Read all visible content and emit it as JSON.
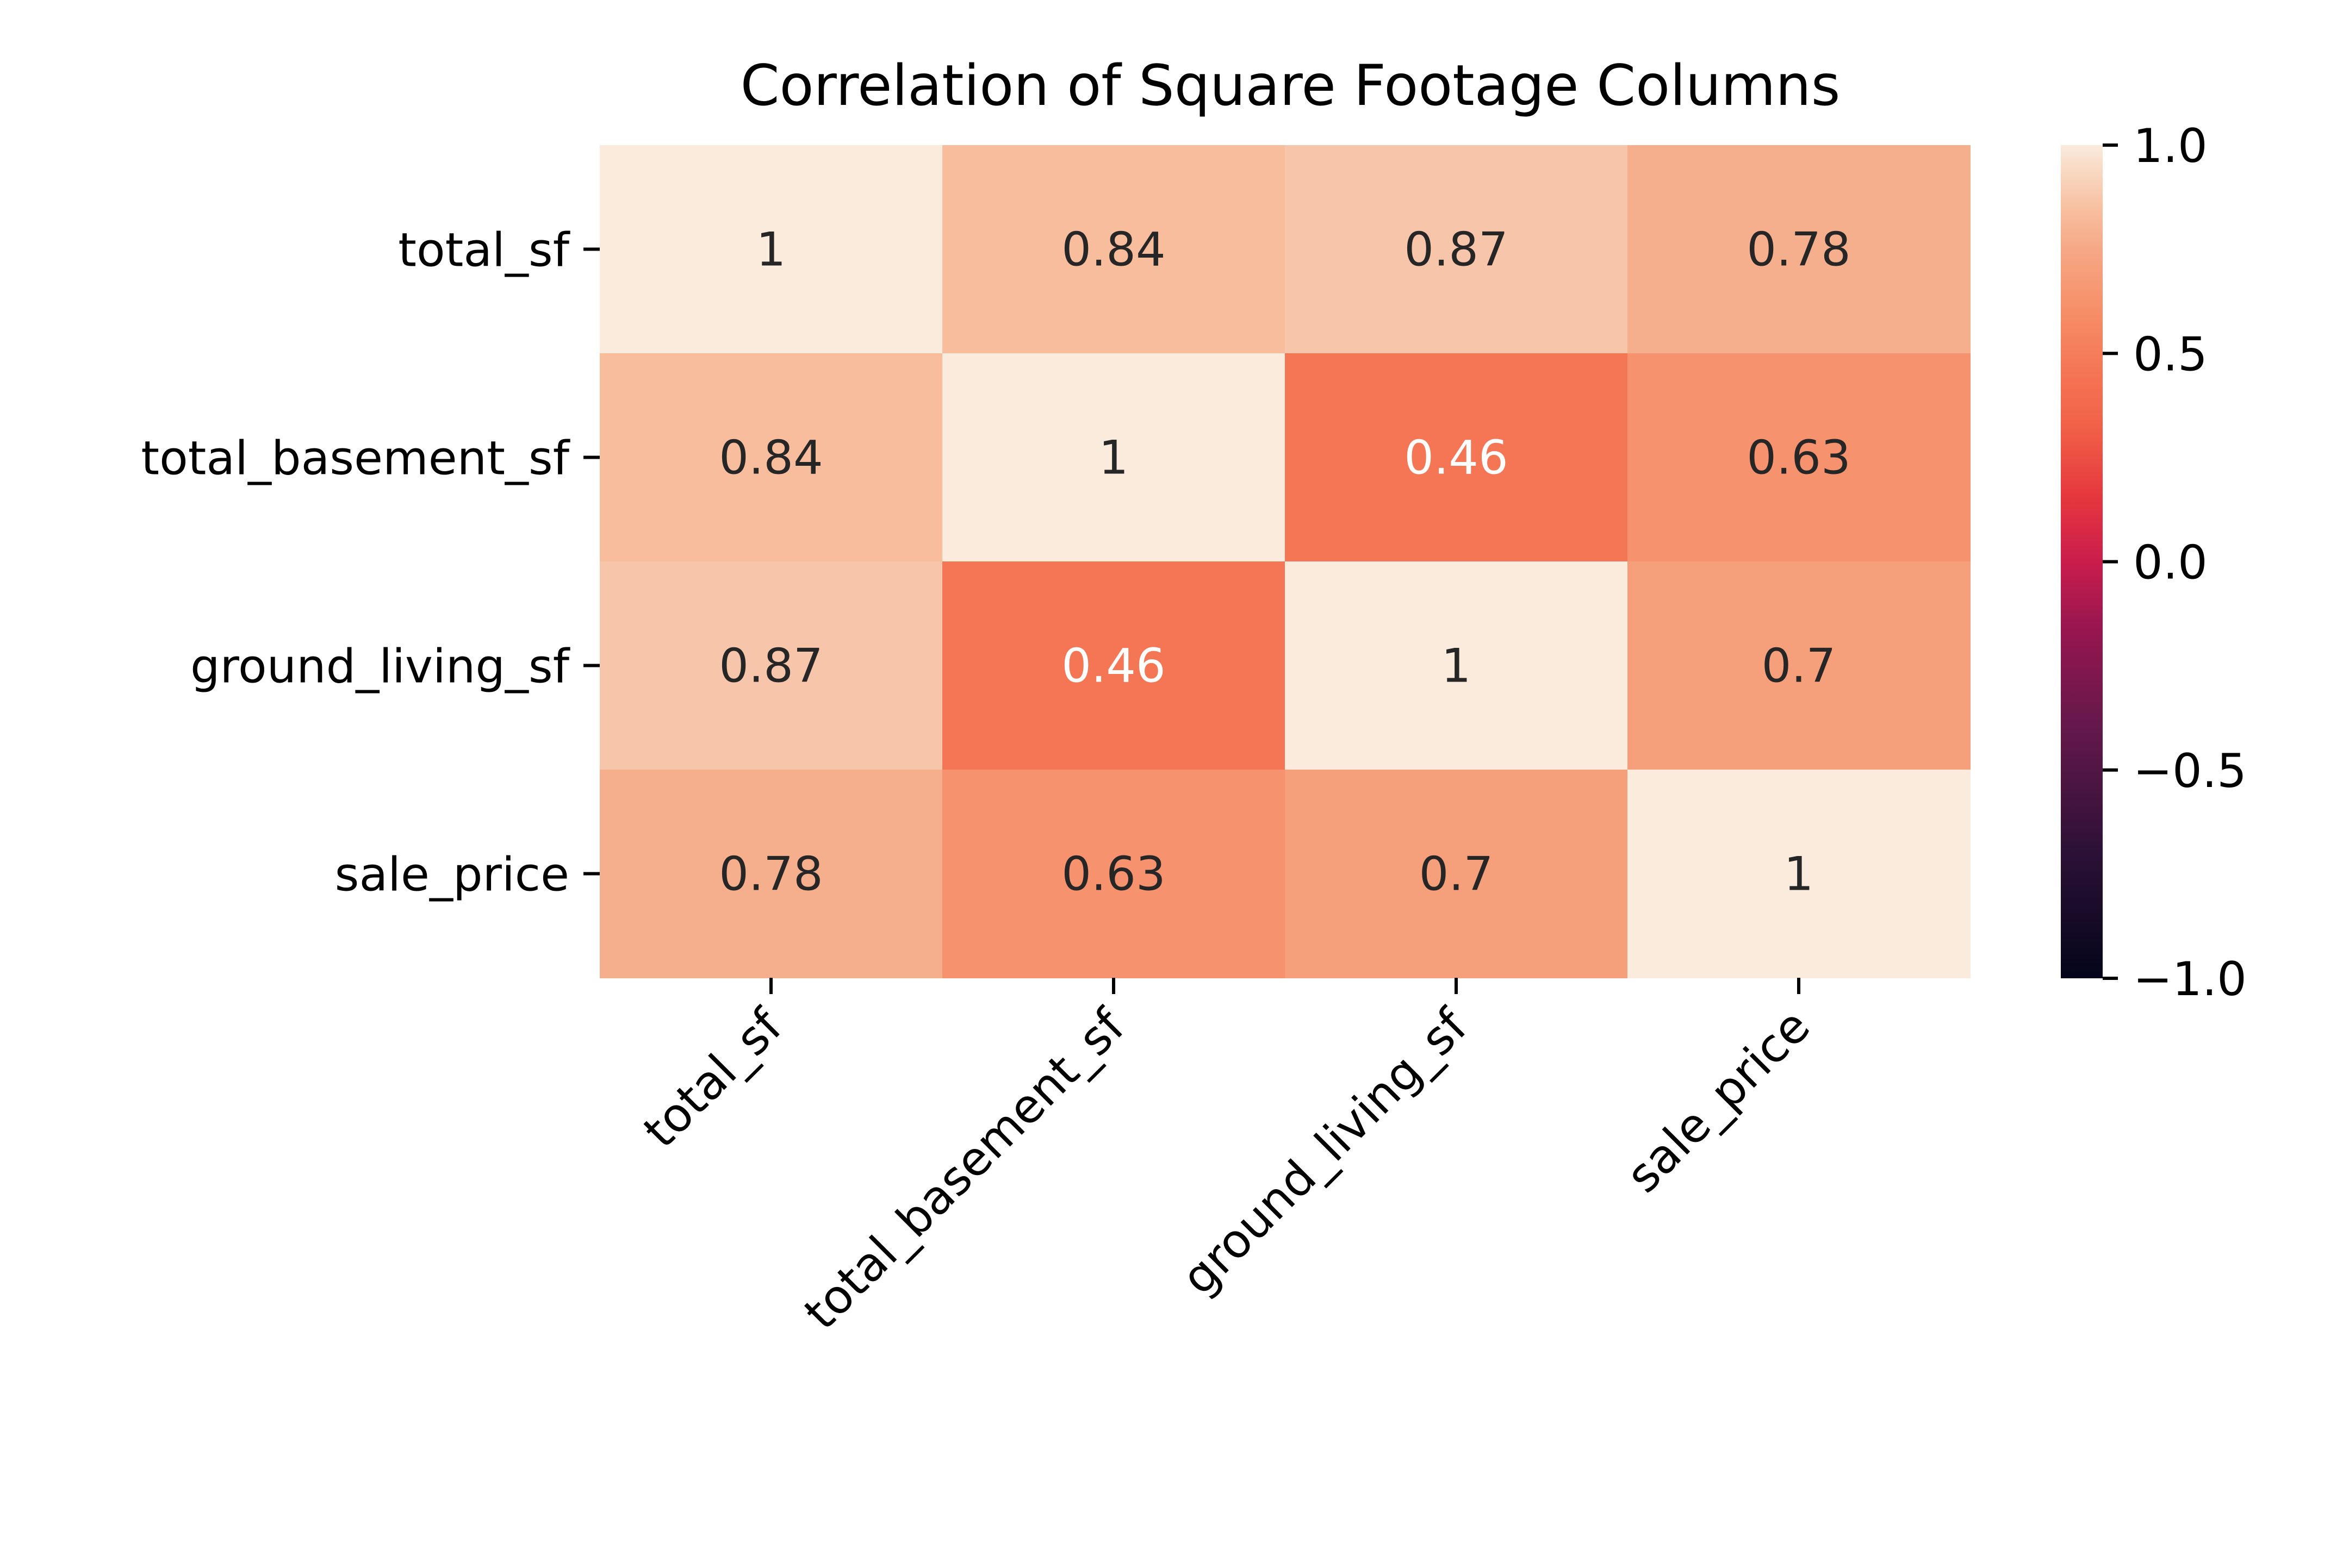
{
  "chart_data": {
    "type": "heatmap",
    "title": "Correlation of Square Footage Columns",
    "xlabel": "",
    "ylabel": "",
    "x_categories": [
      "total_sf",
      "total_basement_sf",
      "ground_living_sf",
      "sale_price"
    ],
    "y_categories": [
      "total_sf",
      "total_basement_sf",
      "ground_living_sf",
      "sale_price"
    ],
    "values": [
      [
        1,
        0.84,
        0.87,
        0.78
      ],
      [
        0.84,
        1,
        0.46,
        0.63
      ],
      [
        0.87,
        0.46,
        1,
        0.7
      ],
      [
        0.78,
        0.63,
        0.7,
        1
      ]
    ],
    "colorbar": {
      "range": [
        -1,
        1
      ],
      "ticks": [
        1.0,
        0.5,
        0.0,
        -0.5,
        -1.0
      ],
      "tick_labels": [
        "1.0",
        "0.5",
        "0.0",
        "−0.5",
        "−1.0"
      ],
      "colormap": "rocket"
    },
    "colors": {
      "text_dark": "#262626",
      "text_light": "#ffffff",
      "axis": "#000000"
    }
  }
}
